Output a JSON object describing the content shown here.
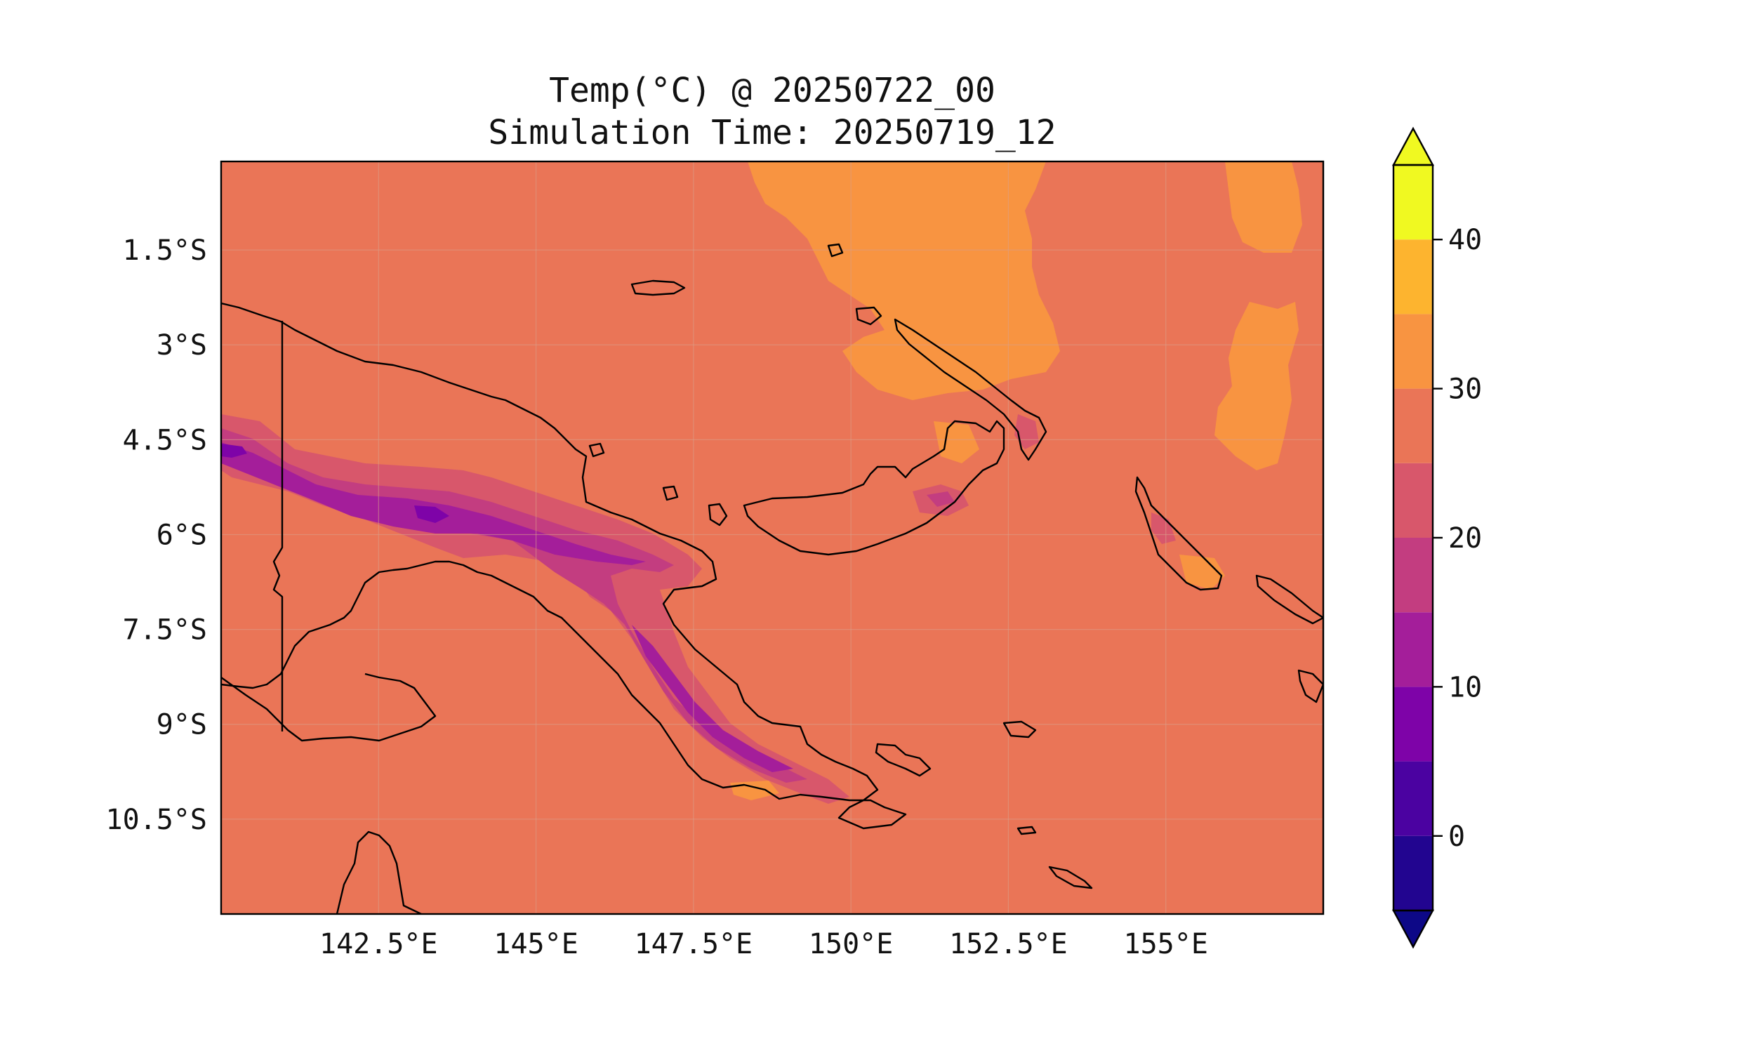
{
  "title_line1": "Temp(°C) @ 20250722_00",
  "title_line2": "Simulation Time: 20250719_12",
  "map": {
    "lon_range": [
      140.0,
      157.5
    ],
    "lat_range": [
      -12.0,
      -0.1
    ],
    "x_ticks": [
      {
        "value": 142.5,
        "label": "142.5°E"
      },
      {
        "value": 145.0,
        "label": "145°E"
      },
      {
        "value": 147.5,
        "label": "147.5°E"
      },
      {
        "value": 150.0,
        "label": "150°E"
      },
      {
        "value": 152.5,
        "label": "152.5°E"
      },
      {
        "value": 155.0,
        "label": "155°E"
      }
    ],
    "y_ticks": [
      {
        "value": -1.5,
        "label": "1.5°S"
      },
      {
        "value": -3.0,
        "label": "3°S"
      },
      {
        "value": -4.5,
        "label": "4.5°S"
      },
      {
        "value": -6.0,
        "label": "6°S"
      },
      {
        "value": -7.5,
        "label": "7.5°S"
      },
      {
        "value": -9.0,
        "label": "9°S"
      },
      {
        "value": -10.5,
        "label": "10.5°S"
      }
    ],
    "background_band_color": "#ea7557"
  },
  "colorbar": {
    "levels": [
      -5,
      0,
      5,
      10,
      15,
      20,
      25,
      30,
      35,
      40,
      45
    ],
    "colors": [
      "#220590",
      "#4b02a1",
      "#7e03a8",
      "#a41e9a",
      "#c33d80",
      "#d8576b",
      "#ea7557",
      "#f89441",
      "#fdb42f",
      "#f0f921"
    ],
    "extend_low_color": "#0d0887",
    "extend_high_color": "#f0f921",
    "tick_values": [
      0,
      10,
      20,
      30,
      40
    ],
    "tick_labels": [
      "0",
      "10",
      "20",
      "30",
      "40"
    ]
  }
}
